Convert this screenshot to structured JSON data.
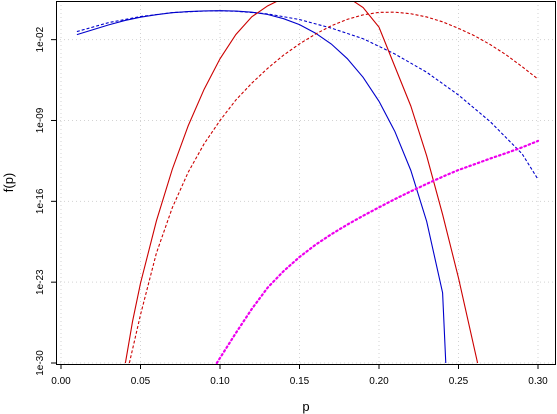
{
  "chart_data": {
    "type": "line",
    "title": "",
    "xlabel": "p",
    "ylabel": "f(p)",
    "y_scale": "log10",
    "xlim": [
      0.0,
      0.3
    ],
    "ylim": [
      1e-30,
      10.0
    ],
    "grid": true,
    "x_ticks": [
      0.0,
      0.05,
      0.1,
      0.15,
      0.2,
      0.25,
      0.3
    ],
    "x_tick_labels": [
      "0.00",
      "0.05",
      "0.10",
      "0.15",
      "0.20",
      "0.25",
      "0.30"
    ],
    "y_ticks": [
      1e-30,
      1e-23,
      1e-16,
      1e-09,
      0.01
    ],
    "y_tick_labels": [
      "1e-30",
      "1e-23",
      "1e-16",
      "1e-09",
      "1e-02"
    ],
    "series": [
      {
        "color": "#0000cc",
        "style": "solid",
        "x": [
          0.01,
          0.02,
          0.03,
          0.04,
          0.05,
          0.06,
          0.07,
          0.08,
          0.09,
          0.1,
          0.11,
          0.12,
          0.13,
          0.14,
          0.15,
          0.16,
          0.17,
          0.18,
          0.19,
          0.2,
          0.21,
          0.22,
          0.23,
          0.24,
          0.242
        ],
        "y": [
          0.027,
          0.072,
          0.19,
          0.45,
          0.88,
          1.45,
          2.15,
          2.7,
          3.05,
          3.2,
          3.0,
          2.4,
          1.5,
          0.65,
          0.2,
          0.037,
          0.0042,
          0.00023,
          5.5e-06,
          4.6e-08,
          1.1e-10,
          4.8e-14,
          1.8e-18,
          1.2e-24,
          1e-30
        ]
      },
      {
        "color": "#0000cc",
        "style": "dashed",
        "x": [
          0.01,
          0.03,
          0.05,
          0.07,
          0.09,
          0.1,
          0.11,
          0.13,
          0.15,
          0.17,
          0.19,
          0.21,
          0.23,
          0.25,
          0.27,
          0.29,
          0.3
        ],
        "y": [
          0.05,
          0.3,
          1.0,
          2.2,
          3.0,
          3.1,
          2.9,
          1.7,
          0.55,
          0.1,
          0.012,
          0.00057,
          1.5e-05,
          1.6e-07,
          7.8e-10,
          1.3e-12,
          8e-15
        ]
      },
      {
        "color": "#cc0000",
        "style": "solid",
        "x": [
          0.0405,
          0.045,
          0.05,
          0.06,
          0.07,
          0.08,
          0.09,
          0.1,
          0.11,
          0.12,
          0.13,
          0.14,
          0.15,
          0.16,
          0.17,
          0.18,
          0.19,
          0.2,
          0.21,
          0.22,
          0.23,
          0.24,
          0.25,
          0.262
        ],
        "y": [
          1e-30,
          4e-27,
          8e-24,
          2e-18,
          6e-14,
          3.5e-10,
          5e-07,
          0.00022,
          0.028,
          0.95,
          8.5,
          40,
          90,
          120,
          110,
          50,
          6.0,
          0.12,
          4.6e-05,
          1.8e-08,
          8.5e-13,
          7.3e-18,
          2.3e-23,
          1e-30
        ]
      },
      {
        "color": "#cc0000",
        "style": "dashed",
        "x": [
          0.043,
          0.05,
          0.06,
          0.07,
          0.08,
          0.09,
          0.1,
          0.11,
          0.12,
          0.13,
          0.14,
          0.15,
          0.16,
          0.17,
          0.18,
          0.19,
          0.2,
          0.21,
          0.22,
          0.23,
          0.24,
          0.25,
          0.26,
          0.27,
          0.28,
          0.29,
          0.3
        ],
        "y": [
          1e-30,
          1.5e-26,
          3.3e-21,
          2.8e-17,
          3.3e-14,
          9.5e-12,
          1e-09,
          6e-08,
          1.7e-06,
          3.3e-05,
          0.00046,
          0.0043,
          0.03,
          0.16,
          0.57,
          1.4,
          2.3,
          2.4,
          1.75,
          0.92,
          0.35,
          0.095,
          0.022,
          0.0037,
          0.00048,
          4.6e-05,
          3.8e-06
        ]
      },
      {
        "color": "#ee00ee",
        "style": "dotted",
        "x": [
          0.098,
          0.11,
          0.12,
          0.13,
          0.14,
          0.15,
          0.16,
          0.17,
          0.18,
          0.19,
          0.2,
          0.21,
          0.22,
          0.23,
          0.24,
          0.25,
          0.26,
          0.27,
          0.28,
          0.29,
          0.3
        ],
        "y": [
          1e-30,
          4e-28,
          4.8e-26,
          3.4e-24,
          9e-23,
          1.5e-21,
          1.7e-20,
          1.4e-19,
          9.5e-19,
          5.6e-18,
          3e-17,
          1.55e-16,
          7.3e-16,
          3.2e-15,
          1.35e-14,
          5.2e-14,
          1.6e-13,
          5.1e-13,
          1.5e-12,
          4.7e-12,
          1.7e-11
        ]
      }
    ]
  }
}
